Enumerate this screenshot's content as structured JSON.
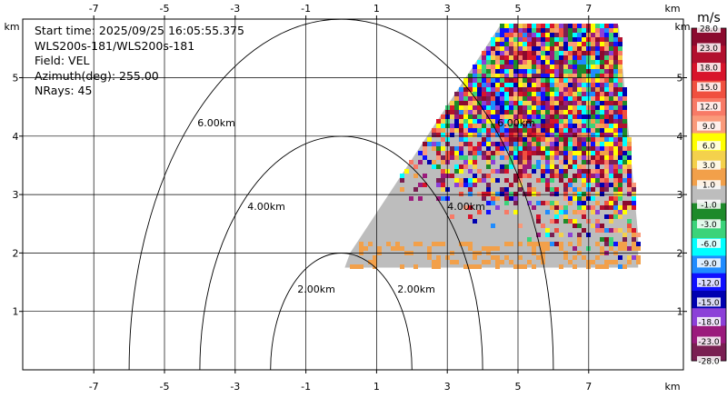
{
  "chart_data": {
    "type": "heatmap",
    "title": "",
    "info_lines": [
      "Start time: 2025/09/25 16:05:55.375",
      "WLS200s-181/WLS200s-181",
      "Field: VEL",
      "Azimuth(deg): 255.00",
      "NRays: 45"
    ],
    "x_unit": "km",
    "y_unit": "km",
    "x_ticks": [
      "-7",
      "-5",
      "-3",
      "-1",
      "1",
      "3",
      "5",
      "7"
    ],
    "x_tick_values": [
      -7,
      -5,
      -3,
      -1,
      1,
      3,
      5,
      7
    ],
    "y_ticks": [
      "1",
      "2",
      "3",
      "4",
      "5"
    ],
    "y_tick_values": [
      1,
      2,
      3,
      4,
      5
    ],
    "xlim": [
      -9,
      9
    ],
    "ylim": [
      0,
      6
    ],
    "range_rings": [
      {
        "radius_km": 2,
        "labels": [
          "2.00km",
          "2.00km"
        ]
      },
      {
        "radius_km": 4,
        "labels": [
          "4.00km",
          "4.00km"
        ]
      },
      {
        "radius_km": 6,
        "labels": [
          "6.00km",
          "6.00km"
        ]
      }
    ],
    "sector_vertices_km": [
      [
        0.1,
        1.75
      ],
      [
        0.25,
        2.0
      ],
      [
        4.5,
        5.9
      ],
      [
        7.85,
        5.9
      ],
      [
        8.4,
        2.3
      ],
      [
        8.4,
        1.75
      ]
    ],
    "colorbar": {
      "unit": "m/s",
      "labels": [
        "28.0",
        "23.0",
        "18.0",
        "15.0",
        "12.0",
        "9.0",
        "6.0",
        "3.0",
        "1.0",
        "-1.0",
        "-3.0",
        "-6.0",
        "-9.0",
        "-12.0",
        "-15.0",
        "-18.0",
        "-23.0",
        "-28.0"
      ],
      "colors": [
        "#8b0a2e",
        "#b2102e",
        "#d8142b",
        "#f0503f",
        "#f87a66",
        "#fa9a7a",
        "#ffff00",
        "#f4d14c",
        "#f2a04a",
        "#bdbdbd",
        "#1e8a2a",
        "#3bd37a",
        "#00ffff",
        "#1f8cff",
        "#1010ff",
        "#0000b0",
        "#8c40d8",
        "#9b1a7c",
        "#7a1f52"
      ]
    }
  }
}
